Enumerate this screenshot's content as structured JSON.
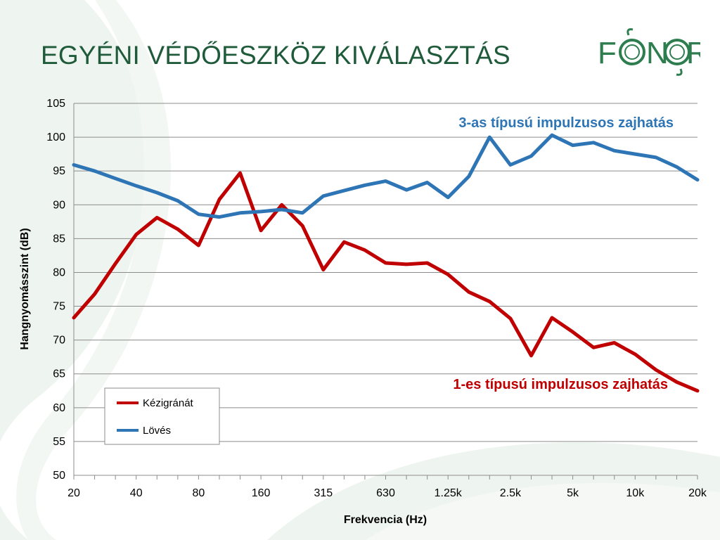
{
  "slide": {
    "title": "EGYÉNI VÉDŐESZKÖZ KIVÁLASZTÁS"
  },
  "logo": {
    "text_left": "F",
    "text_mid": "N",
    "text_right": "R",
    "color": "#2e7d4f"
  },
  "colors": {
    "title": "#1f5b3a",
    "red": "#c00000",
    "blue": "#2e75b6",
    "grid": "#8c8c8c"
  },
  "chart_data": {
    "type": "line",
    "xlabel": "Frekvencia (Hz)",
    "ylabel": "Hangnyomásszint (dB)",
    "ylim": [
      50,
      105
    ],
    "yticks": [
      50,
      55,
      60,
      65,
      70,
      75,
      80,
      85,
      90,
      95,
      100,
      105
    ],
    "x": [
      "20",
      "25",
      "31.5",
      "40",
      "50",
      "63",
      "80",
      "100",
      "125",
      "160",
      "200",
      "250",
      "315",
      "400",
      "500",
      "630",
      "800",
      "1k",
      "1.25k",
      "1.6k",
      "2k",
      "2.5k",
      "3.15k",
      "4k",
      "5k",
      "6.3k",
      "8k",
      "10k",
      "12.5k",
      "16k",
      "20k"
    ],
    "xtick_labels": [
      {
        "at": "20",
        "label": "20"
      },
      {
        "at": "40",
        "label": "40"
      },
      {
        "at": "80",
        "label": "80"
      },
      {
        "at": "160",
        "label": "160"
      },
      {
        "at": "315",
        "label": "315"
      },
      {
        "at": "630",
        "label": "630"
      },
      {
        "at": "1.25k",
        "label": "1.25k"
      },
      {
        "at": "2.5k",
        "label": "2.5k"
      },
      {
        "at": "5k",
        "label": "5k"
      },
      {
        "at": "10k",
        "label": "10k"
      },
      {
        "at": "20k",
        "label": "20k"
      }
    ],
    "grid": true,
    "legend_position": "bottom-left",
    "series": [
      {
        "name": "Kézigránát",
        "color": "#c00000",
        "values": [
          73.3,
          76.8,
          81.3,
          85.6,
          88.1,
          86.4,
          84.0,
          90.8,
          94.7,
          86.2,
          90.0,
          86.9,
          80.4,
          84.5,
          83.3,
          81.4,
          81.2,
          81.4,
          79.7,
          77.1,
          75.7,
          73.2,
          67.7,
          73.3,
          71.2,
          68.9,
          69.6,
          67.9,
          65.6,
          63.8,
          62.5
        ]
      },
      {
        "name": "Lövés",
        "color": "#2e75b6",
        "values": [
          95.9,
          95.0,
          93.9,
          92.8,
          91.8,
          90.6,
          88.6,
          88.2,
          88.8,
          89.0,
          89.3,
          88.8,
          91.3,
          92.1,
          92.9,
          93.5,
          92.2,
          93.3,
          91.1,
          94.2,
          100.0,
          95.9,
          97.2,
          100.3,
          98.8,
          99.2,
          98.0,
          97.5,
          97.0,
          95.6,
          93.7
        ]
      }
    ],
    "annotations": [
      {
        "text": "3-as típusú impulzusos zajhatás",
        "color": "#2e75b6"
      },
      {
        "text": "1-es típusú impulzusos zajhatás",
        "color": "#c00000"
      }
    ]
  }
}
